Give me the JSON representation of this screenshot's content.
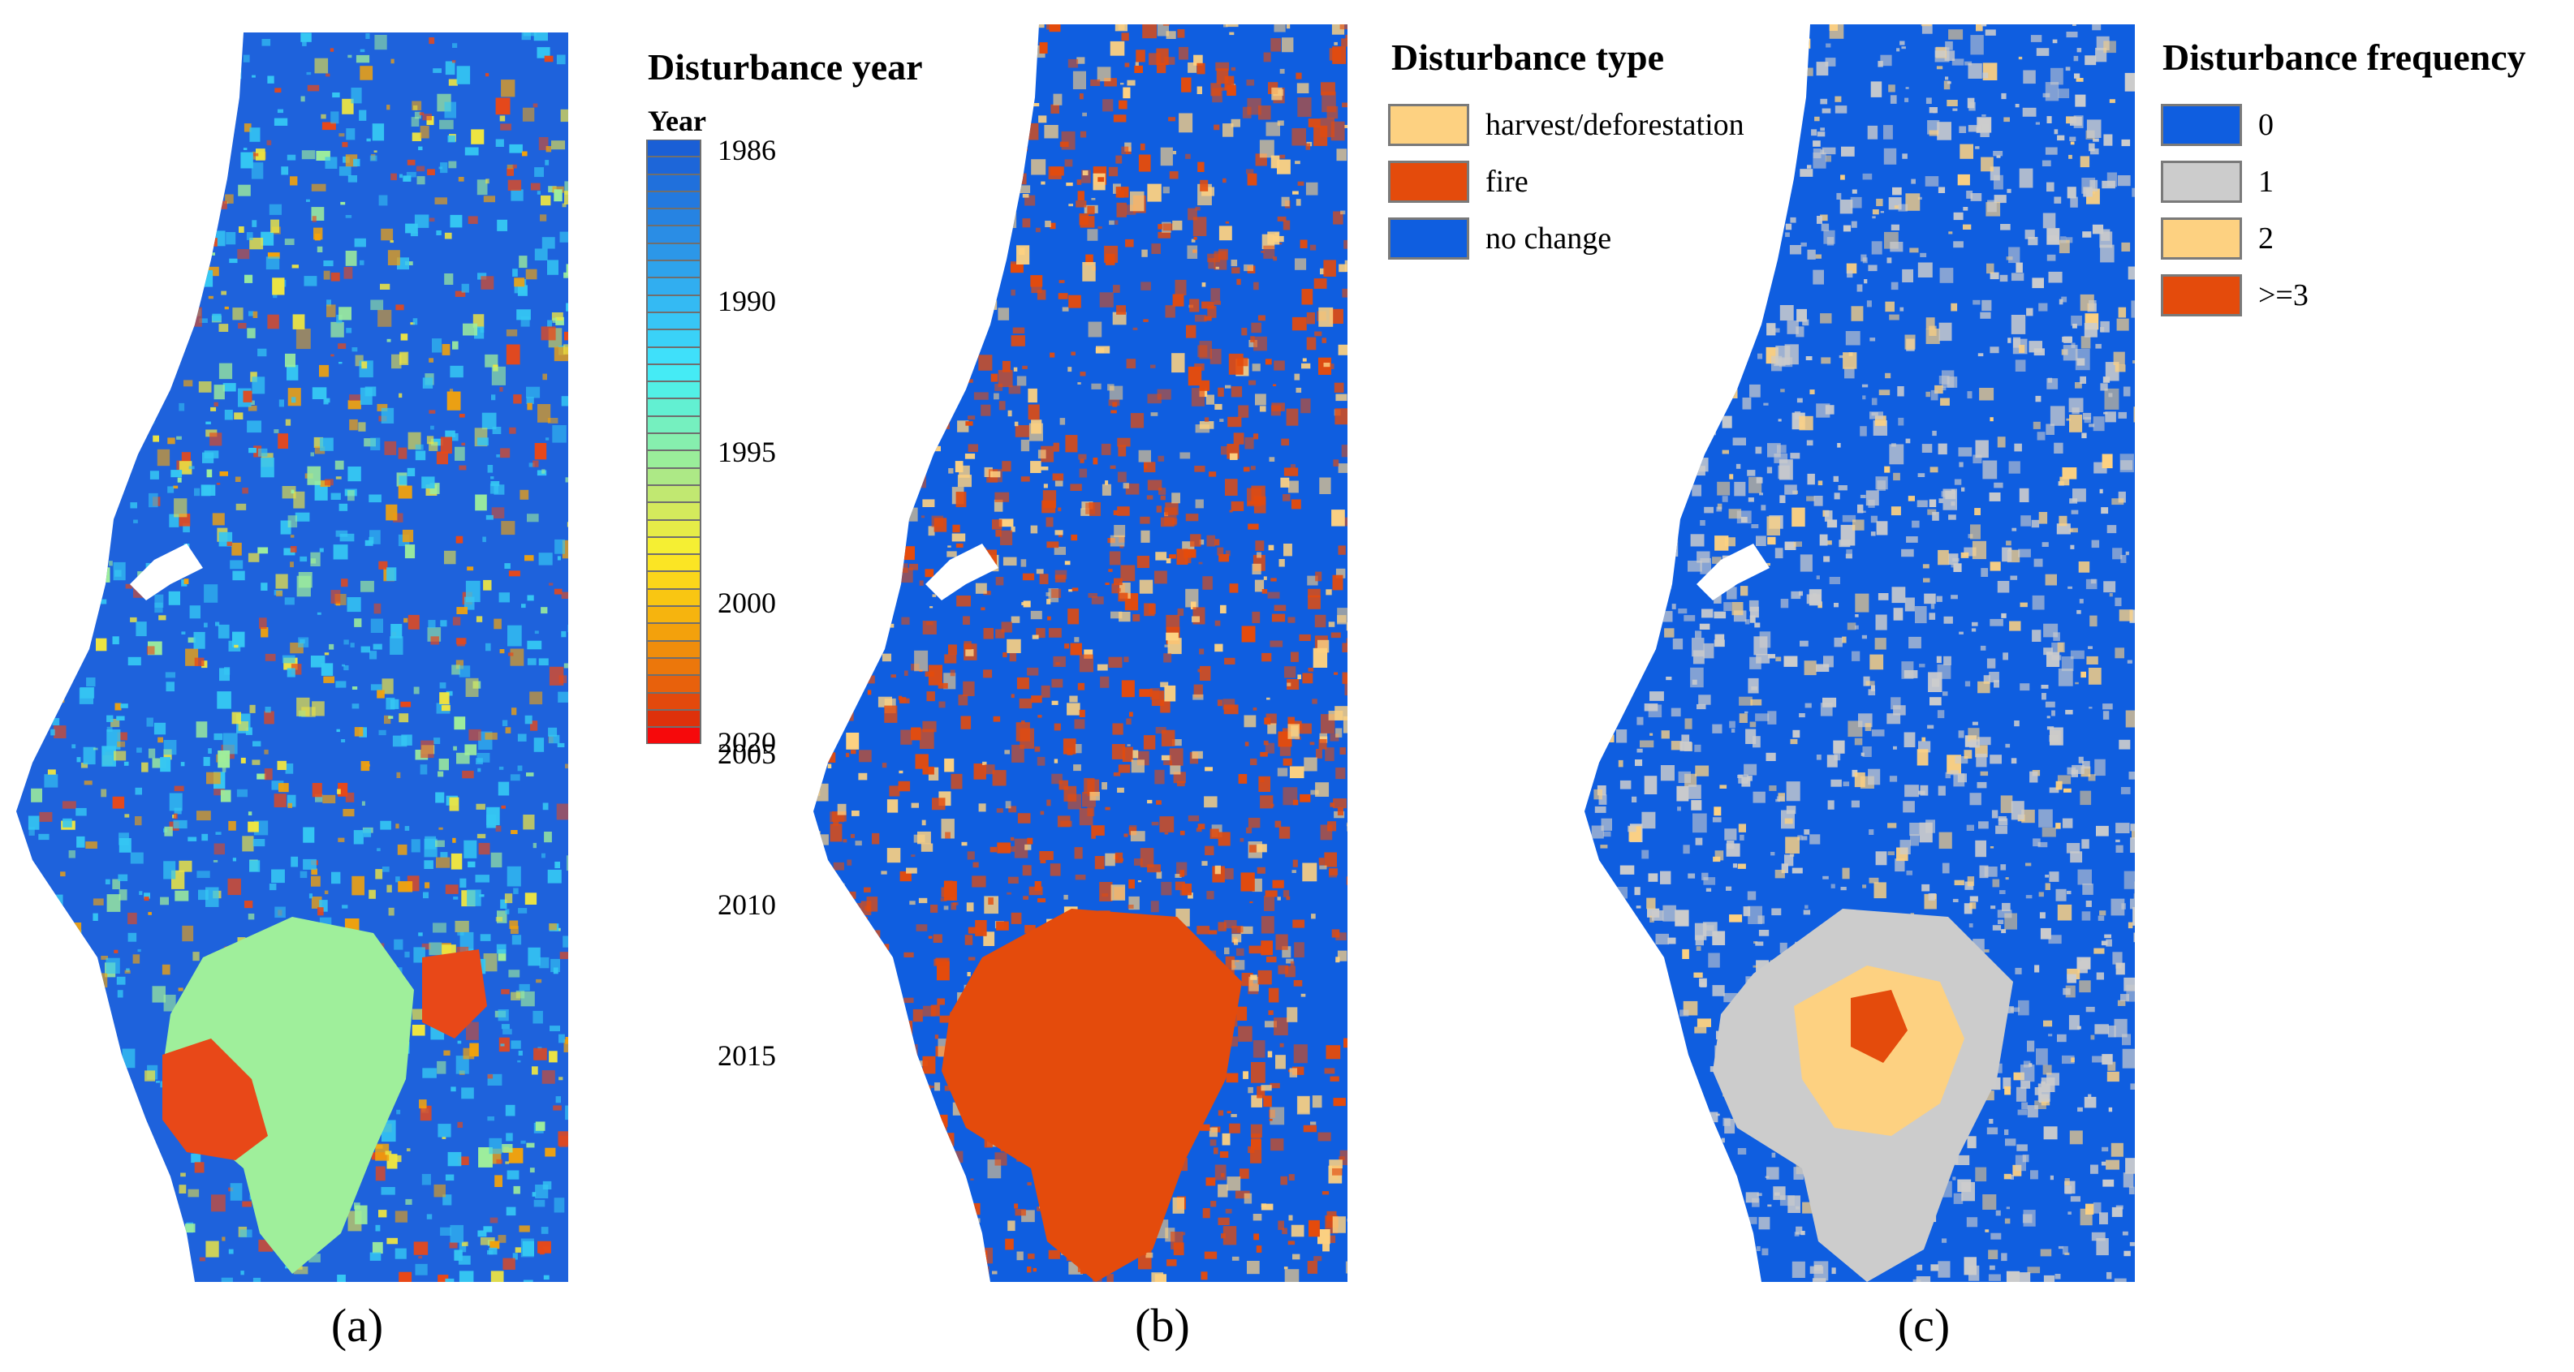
{
  "panel_a": {
    "caption": "(a)",
    "legend_title": "Disturbance year",
    "legend_subtitle": "Year",
    "ticks": [
      "1986",
      "1990",
      "1995",
      "2000",
      "2005",
      "2010",
      "2015",
      "2020"
    ],
    "ramp_colors": [
      "#1a5fd6",
      "#1d66d9",
      "#2070dc",
      "#2379df",
      "#2683e2",
      "#2a8de5",
      "#2c97e8",
      "#2ea3ec",
      "#31aef0",
      "#34baf3",
      "#37c6f6",
      "#3ad2f8",
      "#3fe0fa",
      "#45ebf5",
      "#52f0e6",
      "#62f0d2",
      "#75f0bf",
      "#86efae",
      "#9aee9a",
      "#ade986",
      "#c1e871",
      "#d4ea5c",
      "#e6ec48",
      "#f5ef33",
      "#fbe524",
      "#fbd61a",
      "#f9c612",
      "#f6b40e",
      "#f3a10c",
      "#f08d0b",
      "#ec770b",
      "#e8610c",
      "#e3490c",
      "#de310b",
      "#f6090b"
    ],
    "map_colors": {
      "background": "#1e62dc",
      "cyan": "#35c7f3",
      "green": "#9fef9b",
      "yellow": "#f0e640",
      "orange": "#f2a20c",
      "red": "#e84818"
    }
  },
  "panel_b": {
    "caption": "(b)",
    "legend_title": "Disturbance type",
    "items": [
      {
        "label": "harvest/deforestation",
        "color": "#fdd181"
      },
      {
        "label": "fire",
        "color": "#e44b0c"
      },
      {
        "label": "no change",
        "color": "#0f5ee0"
      }
    ]
  },
  "panel_c": {
    "caption": "(c)",
    "legend_title": "Disturbance frequency",
    "items": [
      {
        "label": "0",
        "color": "#0f5ee0"
      },
      {
        "label": "1",
        "color": "#cccccc"
      },
      {
        "label": "2",
        "color": "#fdd181"
      },
      {
        "label": ">=3",
        "color": "#e44b0c"
      }
    ]
  }
}
